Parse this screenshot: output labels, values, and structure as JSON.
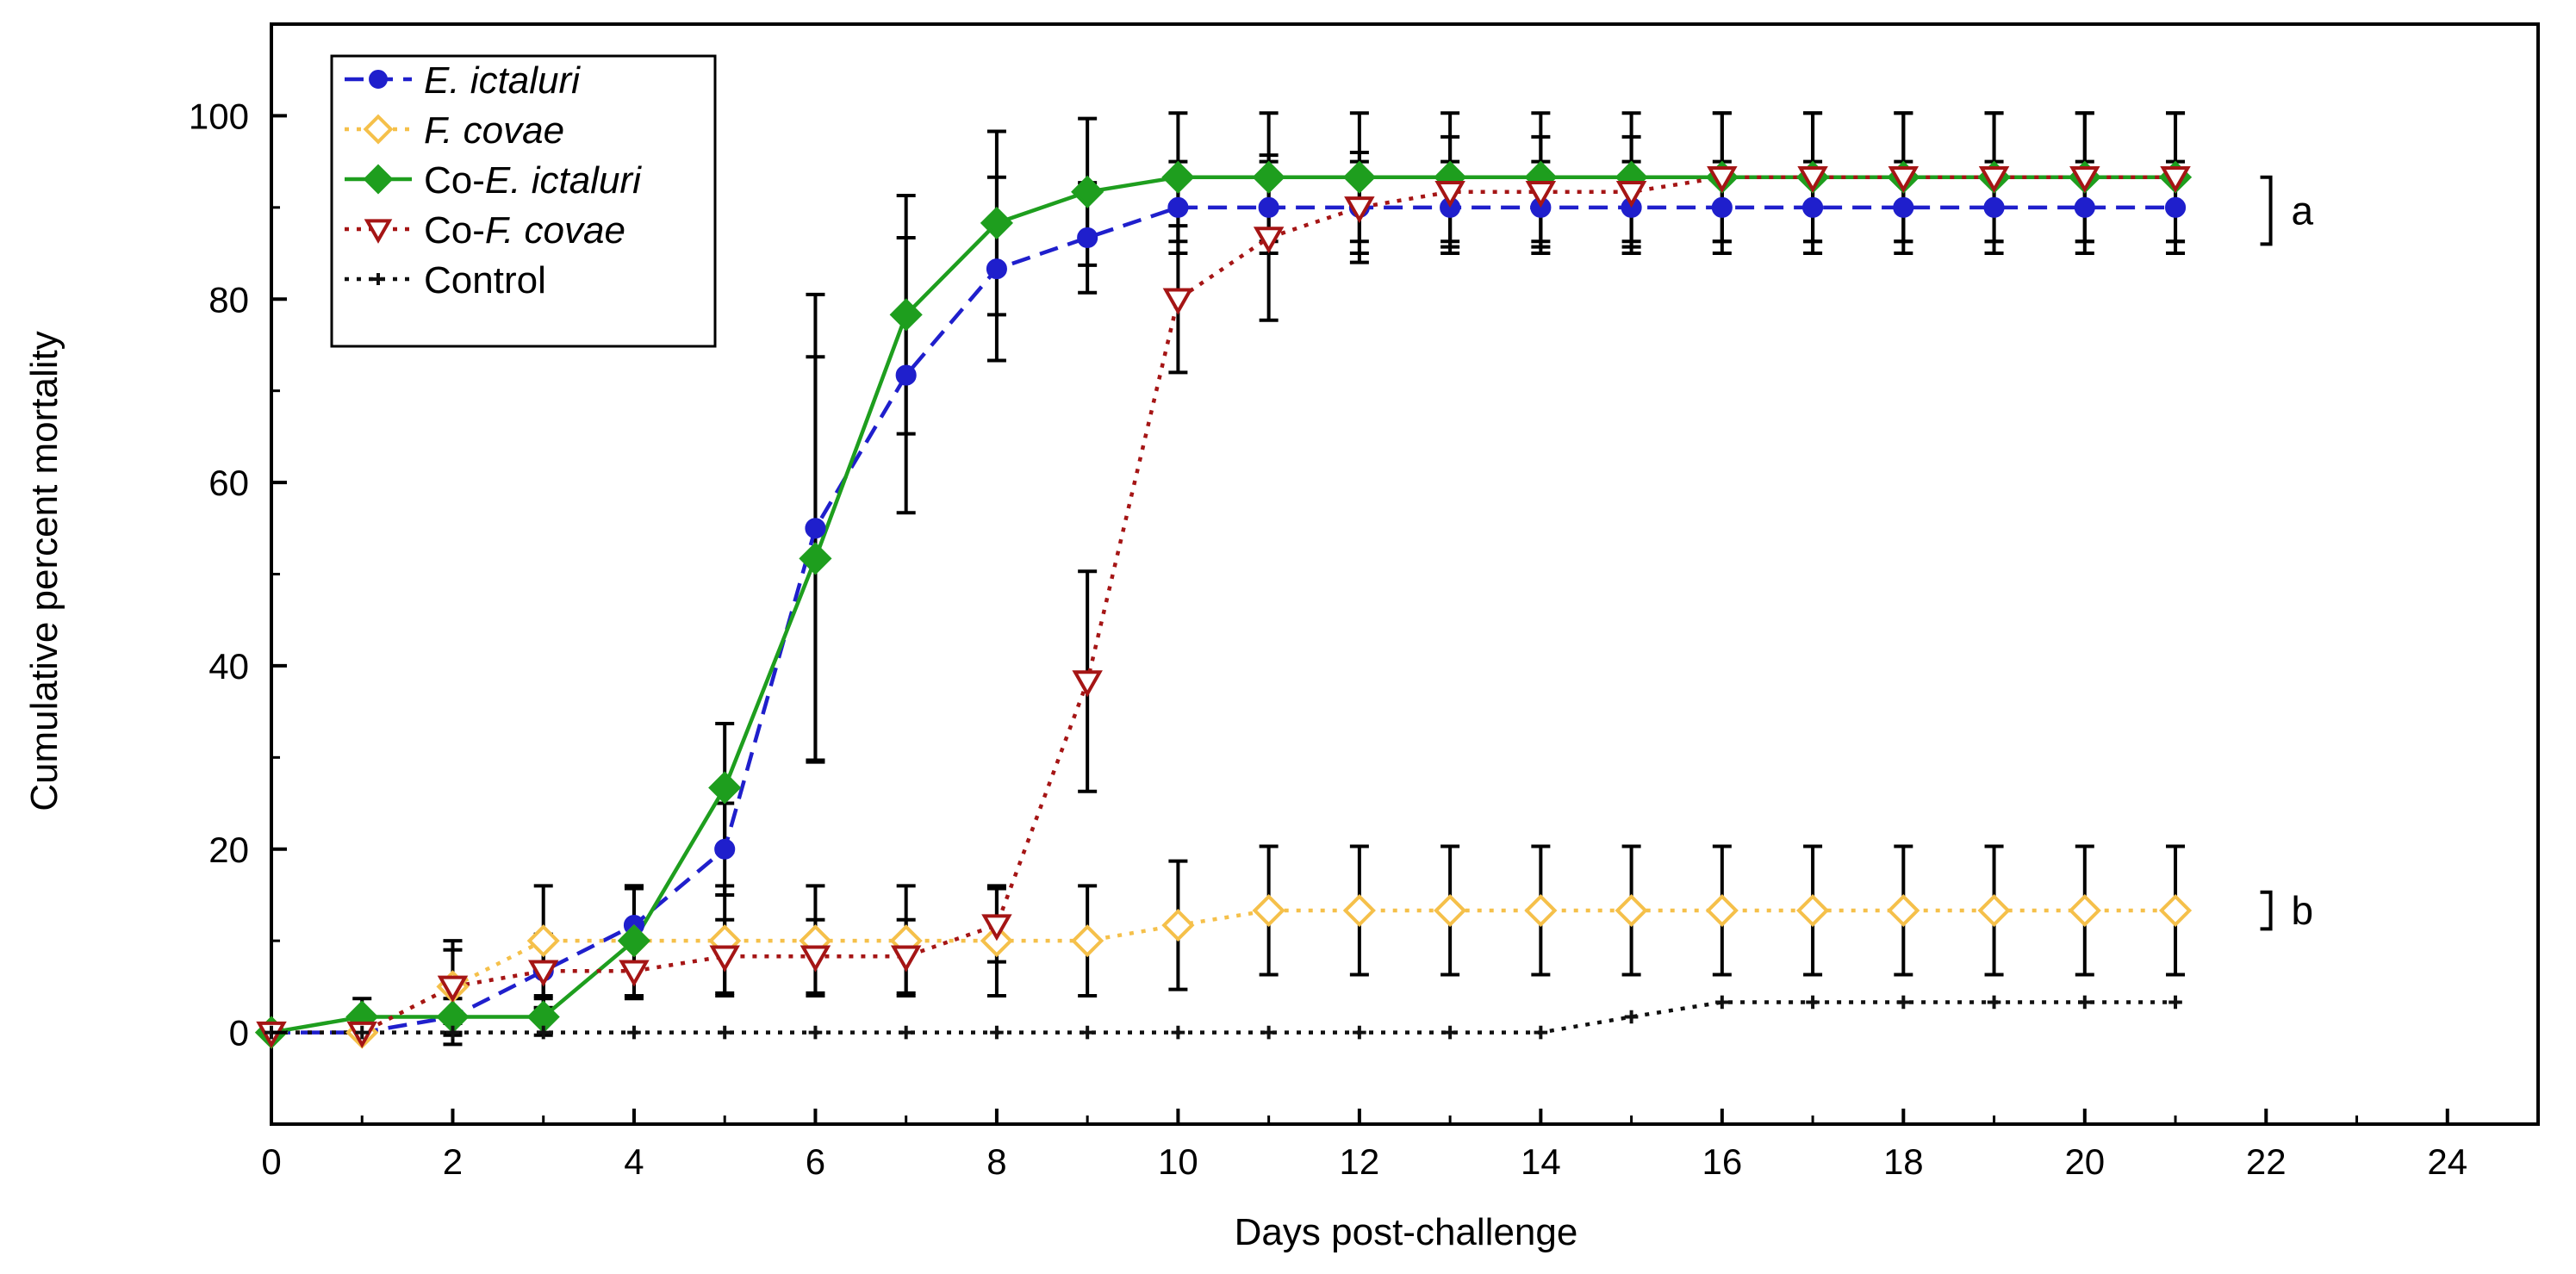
{
  "chart_data": {
    "type": "line",
    "title": "",
    "xlabel": "Days post-challenge",
    "ylabel": "Cumulative percent mortality",
    "xlim": [
      0,
      25
    ],
    "ylim": [
      -10,
      110
    ],
    "xticks": [
      0,
      2,
      4,
      6,
      8,
      10,
      12,
      14,
      16,
      18,
      20,
      22,
      24
    ],
    "yticks": [
      0,
      20,
      40,
      60,
      80,
      100
    ],
    "grid": false,
    "legend_position": "top-left",
    "series": [
      {
        "name": "E. ictaluri",
        "legend_parts": [
          {
            "text": "E. ictaluri",
            "italic": true
          }
        ],
        "color": "#1f1fcc",
        "line_style": "dashed",
        "marker": "circle",
        "x": [
          0,
          1,
          2,
          3,
          4,
          5,
          6,
          7,
          8,
          9,
          10,
          11,
          12,
          13,
          14,
          15,
          16,
          17,
          18,
          19,
          20,
          21
        ],
        "y": [
          0,
          0,
          1.7,
          6.7,
          11.7,
          20,
          55,
          71.7,
          83.3,
          86.7,
          90,
          90,
          90,
          90,
          90,
          90,
          90,
          90,
          90,
          90,
          90,
          90
        ],
        "err": [
          0,
          0,
          3,
          4,
          4,
          5,
          25.5,
          15,
          10,
          6,
          5,
          5,
          5,
          5,
          5,
          5,
          5,
          5,
          5,
          5,
          5,
          5
        ]
      },
      {
        "name": "F. covae",
        "legend_parts": [
          {
            "text": "F. covae",
            "italic": true
          }
        ],
        "color": "#f5c04a",
        "line_style": "dotted",
        "marker": "diamond-open",
        "x": [
          0,
          1,
          2,
          3,
          4,
          5,
          6,
          7,
          8,
          9,
          10,
          11,
          12,
          13,
          14,
          15,
          16,
          17,
          18,
          19,
          20,
          21
        ],
        "y": [
          0,
          0,
          5,
          10,
          10,
          10,
          10,
          10,
          10,
          10,
          11.7,
          13.3,
          13.3,
          13.3,
          13.3,
          13.3,
          13.3,
          13.3,
          13.3,
          13.3,
          13.3,
          13.3
        ],
        "err": [
          0,
          0,
          5,
          6,
          6,
          6,
          6,
          6,
          6,
          6,
          7,
          7,
          7,
          7,
          7,
          7,
          7,
          7,
          7,
          7,
          7,
          7
        ]
      },
      {
        "name": "Co-E. ictaluri",
        "legend_parts": [
          {
            "text": "Co-",
            "italic": false
          },
          {
            "text": "E. ictaluri",
            "italic": true
          }
        ],
        "color": "#1e9e1e",
        "line_style": "solid",
        "marker": "diamond",
        "x": [
          0,
          1,
          2,
          3,
          4,
          5,
          6,
          7,
          8,
          9,
          10,
          11,
          12,
          13,
          14,
          15,
          16,
          17,
          18,
          19,
          20,
          21
        ],
        "y": [
          0,
          1.7,
          1.7,
          1.7,
          10,
          26.7,
          51.7,
          78.3,
          88.3,
          91.7,
          93.3,
          93.3,
          93.3,
          93.3,
          93.3,
          93.3,
          93.3,
          93.3,
          93.3,
          93.3,
          93.3,
          93.3
        ],
        "err": [
          0,
          2,
          2,
          2,
          6,
          7,
          22,
          13,
          10,
          8,
          7,
          7,
          7,
          7,
          7,
          7,
          7,
          7,
          7,
          7,
          7,
          7
        ]
      },
      {
        "name": "Co-F. covae",
        "legend_parts": [
          {
            "text": "Co-",
            "italic": false
          },
          {
            "text": "F. covae",
            "italic": true
          }
        ],
        "color": "#a51515",
        "line_style": "dotted",
        "marker": "triangle-down-open",
        "x": [
          0,
          1,
          2,
          3,
          4,
          5,
          6,
          7,
          8,
          9,
          10,
          11,
          12,
          13,
          14,
          15,
          16,
          17,
          18,
          19,
          20,
          21
        ],
        "y": [
          0,
          0,
          5,
          6.7,
          6.7,
          8.3,
          8.3,
          8.3,
          11.7,
          38.3,
          80,
          86.7,
          90,
          91.7,
          91.7,
          91.7,
          93.3,
          93.3,
          93.3,
          93.3,
          93.3,
          93.3
        ],
        "err": [
          0,
          0,
          4,
          4,
          3,
          4,
          4,
          4,
          4,
          12,
          8,
          9,
          6,
          6,
          6,
          6,
          7,
          7,
          7,
          7,
          7,
          7
        ]
      },
      {
        "name": "Control",
        "legend_parts": [
          {
            "text": "Control",
            "italic": false
          }
        ],
        "color": "#111111",
        "line_style": "dotted",
        "marker": "plus",
        "x": [
          0,
          1,
          2,
          3,
          4,
          5,
          6,
          7,
          8,
          9,
          10,
          11,
          12,
          13,
          14,
          15,
          16,
          17,
          18,
          19,
          20,
          21
        ],
        "y": [
          0,
          0,
          0,
          0,
          0,
          0,
          0,
          0,
          0,
          0,
          0,
          0,
          0,
          0,
          0,
          1.7,
          3.3,
          3.3,
          3.3,
          3.3,
          3.3,
          3.3
        ],
        "err": [
          0,
          0,
          0,
          0,
          0,
          0,
          0,
          0,
          0,
          0,
          0,
          0,
          0,
          0,
          0,
          0,
          0,
          0,
          0,
          0,
          0,
          0
        ]
      }
    ],
    "annotations": [
      {
        "label": "a",
        "y_low": 86,
        "y_high": 93.3
      },
      {
        "label": "b",
        "y_low": 11.3,
        "y_high": 15.3
      }
    ]
  }
}
